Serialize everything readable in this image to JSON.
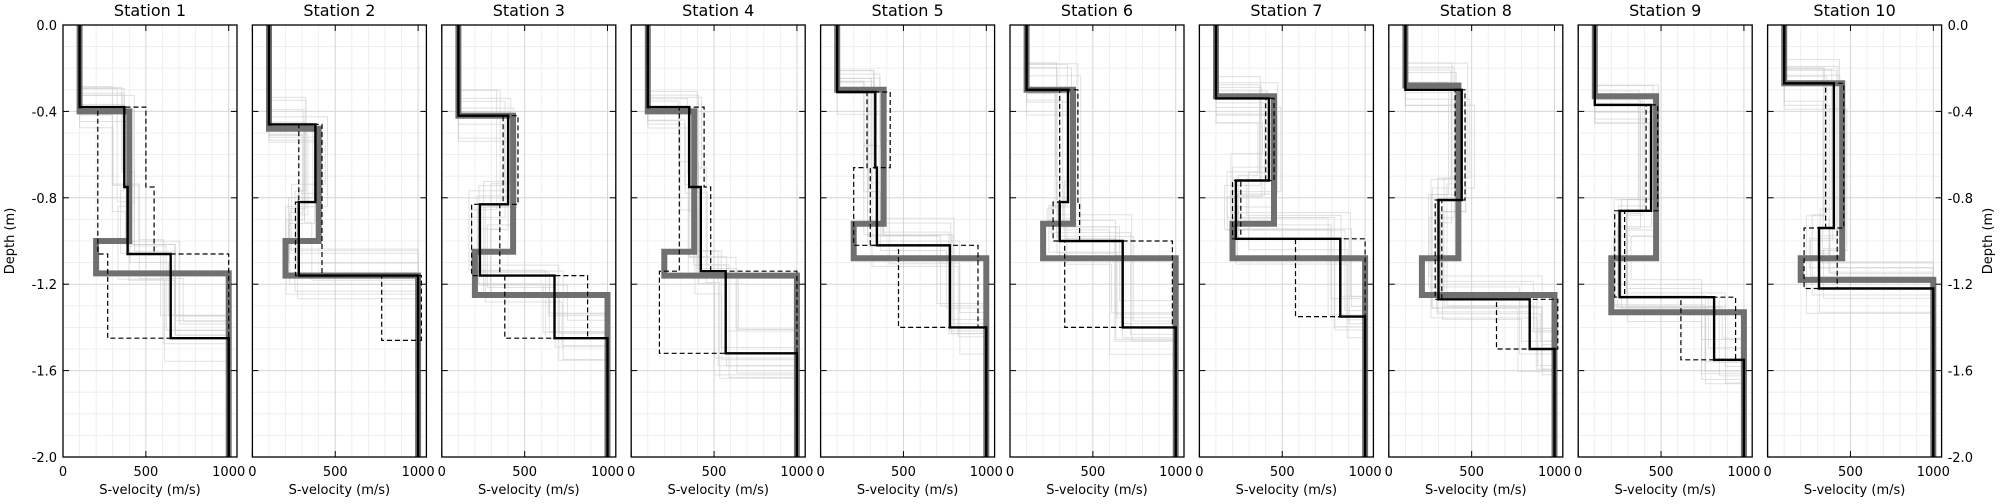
{
  "chart_data": {
    "type": "line",
    "layout": "10 panels side by side, shared depth axis",
    "xlabel": "S-velocity (m/s)",
    "ylabel": "Depth (m)",
    "xlim": [
      0,
      1050
    ],
    "ylim": [
      -2.0,
      0.0
    ],
    "x_ticks": [
      0,
      500,
      1000
    ],
    "x_tick_labels": [
      "0",
      "500",
      "1000"
    ],
    "y_ticks": [
      0.0,
      -0.4,
      -0.8,
      -1.2,
      -1.6,
      -2.0
    ],
    "y_tick_labels": [
      "0.0",
      "-0.4",
      "-0.8",
      "-1.2",
      "-1.6",
      "-2.0"
    ],
    "grid": true,
    "series_styles": {
      "reference": {
        "color": "#707070",
        "style": "thick solid"
      },
      "best_model": {
        "color": "#000000",
        "style": "solid"
      },
      "bound_low": {
        "color": "#000000",
        "style": "dashed"
      },
      "bound_high": {
        "color": "#000000",
        "style": "dashed"
      },
      "ensemble": {
        "color": "#c8c8c8",
        "style": "thin"
      }
    },
    "panels": [
      {
        "title": "Station 1",
        "reference": {
          "velocities": [
            100,
            400,
            200,
            1000
          ],
          "depths": [
            0,
            0.4,
            1.0,
            1.15,
            2.0
          ]
        },
        "best_model": {
          "velocities": [
            100,
            370,
            390,
            650,
            1000
          ],
          "depths": [
            0,
            0.38,
            0.75,
            1.06,
            1.45,
            2.0
          ]
        },
        "bound_low": {
          "velocities": [
            100,
            210,
            270,
            1000
          ],
          "depths": [
            0,
            0.38,
            1.06,
            1.45,
            2.0
          ]
        },
        "bound_high": {
          "velocities": [
            100,
            500,
            550,
            1000
          ],
          "depths": [
            0,
            0.38,
            0.75,
            1.06,
            2.0
          ]
        }
      },
      {
        "title": "Station 2",
        "reference": {
          "velocities": [
            100,
            400,
            200,
            1000
          ],
          "depths": [
            0,
            0.48,
            1.0,
            1.16,
            2.0
          ]
        },
        "best_model": {
          "velocities": [
            100,
            380,
            280,
            1000
          ],
          "depths": [
            0,
            0.46,
            0.82,
            1.16,
            2.0
          ]
        },
        "bound_low": {
          "velocities": [
            100,
            280,
            260,
            780,
            1000
          ],
          "depths": [
            0,
            0.46,
            0.82,
            1.16,
            1.46,
            2.0
          ]
        },
        "bound_high": {
          "velocities": [
            100,
            420,
            1020,
            1000
          ],
          "depths": [
            0,
            0.46,
            1.16,
            1.46,
            2.0
          ]
        }
      },
      {
        "title": "Station 3",
        "reference": {
          "velocities": [
            100,
            430,
            200,
            1000
          ],
          "depths": [
            0,
            0.42,
            1.05,
            1.25,
            2.0
          ]
        },
        "best_model": {
          "velocities": [
            100,
            400,
            230,
            680,
            1000
          ],
          "depths": [
            0,
            0.42,
            0.83,
            1.16,
            1.45,
            2.0
          ]
        },
        "bound_low": {
          "velocities": [
            100,
            370,
            180,
            380,
            1000
          ],
          "depths": [
            0,
            0.42,
            0.83,
            1.16,
            1.45,
            2.0
          ]
        },
        "bound_high": {
          "velocities": [
            100,
            460,
            350,
            880,
            1000
          ],
          "depths": [
            0,
            0.42,
            0.83,
            1.16,
            1.45,
            2.0
          ]
        }
      },
      {
        "title": "Station 4",
        "reference": {
          "velocities": [
            100,
            380,
            200,
            1000
          ],
          "depths": [
            0,
            0.4,
            1.05,
            1.16,
            2.0
          ]
        },
        "best_model": {
          "velocities": [
            100,
            350,
            420,
            570,
            1000
          ],
          "depths": [
            0,
            0.38,
            0.75,
            1.14,
            1.52,
            2.0
          ]
        },
        "bound_low": {
          "velocities": [
            100,
            290,
            170,
            1000
          ],
          "depths": [
            0,
            0.38,
            1.14,
            1.52,
            2.0
          ]
        },
        "bound_high": {
          "velocities": [
            100,
            440,
            480,
            1000
          ],
          "depths": [
            0,
            0.38,
            0.75,
            1.14,
            2.0
          ]
        }
      },
      {
        "title": "Station 5",
        "reference": {
          "velocities": [
            100,
            380,
            200,
            1000
          ],
          "depths": [
            0,
            0.3,
            0.92,
            1.08,
            2.0
          ]
        },
        "best_model": {
          "velocities": [
            100,
            330,
            340,
            780,
            1000
          ],
          "depths": [
            0,
            0.31,
            0.66,
            1.02,
            1.4,
            2.0
          ]
        },
        "bound_low": {
          "velocities": [
            100,
            280,
            200,
            470,
            1000
          ],
          "depths": [
            0,
            0.31,
            0.66,
            1.02,
            1.4,
            2.0
          ]
        },
        "bound_high": {
          "velocities": [
            100,
            420,
            300,
            950,
            1000
          ],
          "depths": [
            0,
            0.31,
            0.66,
            1.02,
            1.4,
            2.0
          ]
        }
      },
      {
        "title": "Station 6",
        "reference": {
          "velocities": [
            100,
            380,
            200,
            1000
          ],
          "depths": [
            0,
            0.3,
            0.92,
            1.08,
            2.0
          ]
        },
        "best_model": {
          "velocities": [
            100,
            350,
            300,
            680,
            1000
          ],
          "depths": [
            0,
            0.3,
            0.82,
            1.0,
            1.4,
            2.0
          ]
        },
        "bound_low": {
          "velocities": [
            100,
            300,
            260,
            330,
            1000
          ],
          "depths": [
            0,
            0.3,
            0.82,
            1.0,
            1.4,
            2.0
          ]
        },
        "bound_high": {
          "velocities": [
            100,
            410,
            420,
            980,
            1000
          ],
          "depths": [
            0,
            0.3,
            0.82,
            1.0,
            1.4,
            2.0
          ]
        }
      },
      {
        "title": "Station 7",
        "reference": {
          "velocities": [
            100,
            450,
            200,
            1000
          ],
          "depths": [
            0,
            0.33,
            0.92,
            1.08,
            2.0
          ]
        },
        "best_model": {
          "velocities": [
            100,
            420,
            220,
            850,
            1000
          ],
          "depths": [
            0,
            0.34,
            0.72,
            0.99,
            1.35,
            2.0
          ]
        },
        "bound_low": {
          "velocities": [
            100,
            400,
            200,
            580,
            1000
          ],
          "depths": [
            0,
            0.34,
            0.72,
            0.99,
            1.35,
            2.0
          ]
        },
        "bound_high": {
          "velocities": [
            100,
            450,
            250,
            1000
          ],
          "depths": [
            0,
            0.34,
            0.72,
            0.99,
            2.0
          ]
        }
      },
      {
        "title": "Station 8",
        "reference": {
          "velocities": [
            100,
            420,
            200,
            1000
          ],
          "depths": [
            0,
            0.28,
            1.08,
            1.25,
            2.0
          ]
        },
        "best_model": {
          "velocities": [
            100,
            440,
            300,
            850,
            1000
          ],
          "depths": [
            0,
            0.3,
            0.81,
            1.27,
            1.5,
            2.0
          ]
        },
        "bound_low": {
          "velocities": [
            100,
            400,
            280,
            650,
            1000
          ],
          "depths": [
            0,
            0.3,
            0.81,
            1.27,
            1.5,
            2.0
          ]
        },
        "bound_high": {
          "velocities": [
            100,
            460,
            320,
            1020,
            1000
          ],
          "depths": [
            0,
            0.3,
            0.81,
            1.27,
            1.5,
            2.0
          ]
        }
      },
      {
        "title": "Station 9",
        "reference": {
          "velocities": [
            100,
            470,
            200,
            1000
          ],
          "depths": [
            0,
            0.33,
            1.08,
            1.33,
            2.0
          ]
        },
        "best_model": {
          "velocities": [
            100,
            440,
            250,
            820,
            1000
          ],
          "depths": [
            0,
            0.37,
            0.86,
            1.26,
            1.55,
            2.0
          ]
        },
        "bound_low": {
          "velocities": [
            100,
            410,
            220,
            620,
            1000
          ],
          "depths": [
            0,
            0.37,
            0.86,
            1.26,
            1.55,
            2.0
          ]
        },
        "bound_high": {
          "velocities": [
            100,
            480,
            280,
            950,
            1000
          ],
          "depths": [
            0,
            0.37,
            0.86,
            1.26,
            1.55,
            2.0
          ]
        }
      },
      {
        "title": "Station 10",
        "reference": {
          "velocities": [
            100,
            450,
            200,
            1000
          ],
          "depths": [
            0,
            0.27,
            1.08,
            1.18,
            2.0
          ]
        },
        "best_model": {
          "velocities": [
            100,
            400,
            310,
            1000
          ],
          "depths": [
            0,
            0.27,
            0.94,
            1.22,
            2.0
          ]
        },
        "bound_low": {
          "velocities": [
            100,
            350,
            220,
            1000
          ],
          "depths": [
            0,
            0.27,
            0.94,
            1.22,
            2.0
          ]
        },
        "bound_high": {
          "velocities": [
            100,
            460,
            420,
            1000
          ],
          "depths": [
            0,
            0.27,
            0.94,
            1.22,
            2.0
          ]
        }
      }
    ]
  }
}
